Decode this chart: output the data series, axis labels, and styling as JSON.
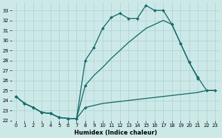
{
  "xlabel": "Humidex (Indice chaleur)",
  "xlim": [
    -0.5,
    23.5
  ],
  "ylim": [
    22,
    33.8
  ],
  "yticks": [
    22,
    23,
    24,
    25,
    26,
    27,
    28,
    29,
    30,
    31,
    32,
    33
  ],
  "xticks": [
    0,
    1,
    2,
    3,
    4,
    5,
    6,
    7,
    8,
    9,
    10,
    11,
    12,
    13,
    14,
    15,
    16,
    17,
    18,
    19,
    20,
    21,
    22,
    23
  ],
  "bg_color": "#cce9e8",
  "grid_color": "#aad0ce",
  "line_color": "#1a6b6b",
  "line_width": 1.0,
  "marker_size": 2.5,
  "line1_x": [
    0,
    1,
    2,
    3,
    4,
    5,
    6,
    7,
    8,
    9,
    10,
    11,
    12,
    13,
    14,
    15,
    16,
    17,
    18,
    19,
    20,
    21,
    22,
    23
  ],
  "line1_y": [
    24.4,
    23.7,
    23.3,
    22.8,
    22.7,
    22.3,
    22.2,
    22.2,
    23.3,
    23.5,
    23.7,
    23.8,
    23.9,
    24.0,
    24.1,
    24.2,
    24.3,
    24.4,
    24.5,
    24.6,
    24.7,
    24.8,
    25.0,
    25.0
  ],
  "line1_markers_x": [
    0,
    1,
    2,
    3,
    4,
    5,
    6,
    7,
    8
  ],
  "line1_markers_y": [
    24.4,
    23.7,
    23.3,
    22.8,
    22.7,
    22.3,
    22.2,
    22.2,
    23.3
  ],
  "line2_x": [
    0,
    1,
    2,
    3,
    4,
    5,
    6,
    7,
    8,
    9,
    10,
    11,
    12,
    13,
    14,
    15,
    16,
    17,
    18,
    19,
    20,
    21,
    22,
    23
  ],
  "line2_y": [
    24.4,
    23.7,
    23.3,
    22.8,
    22.7,
    22.3,
    22.2,
    22.2,
    25.5,
    26.5,
    27.3,
    28.2,
    29.0,
    29.8,
    30.5,
    31.2,
    31.6,
    32.0,
    31.6,
    29.7,
    27.8,
    26.3,
    25.0,
    25.0
  ],
  "line2_markers_x": [
    0,
    1,
    2,
    3,
    4,
    5,
    6,
    7,
    8,
    18,
    19,
    20,
    21,
    22,
    23
  ],
  "line2_markers_y": [
    24.4,
    23.7,
    23.3,
    22.8,
    22.7,
    22.3,
    22.2,
    22.2,
    25.5,
    31.6,
    29.7,
    27.8,
    26.3,
    25.0,
    25.0
  ],
  "line3_x": [
    0,
    1,
    2,
    3,
    4,
    5,
    6,
    7,
    8,
    9,
    10,
    11,
    12,
    13,
    14,
    15,
    16,
    17,
    18,
    19,
    20,
    21
  ],
  "line3_y": [
    24.4,
    23.7,
    23.3,
    22.8,
    22.7,
    22.3,
    22.2,
    22.2,
    28.0,
    29.3,
    31.2,
    32.3,
    32.7,
    32.2,
    32.2,
    33.5,
    33.0,
    33.0,
    31.6,
    29.7,
    27.8,
    26.2
  ],
  "line3_markers_x": [
    0,
    1,
    2,
    3,
    4,
    5,
    6,
    7,
    8,
    9,
    10,
    11,
    12,
    13,
    14,
    15,
    16,
    17,
    18,
    19,
    20,
    21
  ],
  "line3_markers_y": [
    24.4,
    23.7,
    23.3,
    22.8,
    22.7,
    22.3,
    22.2,
    22.2,
    28.0,
    29.3,
    31.2,
    32.3,
    32.7,
    32.2,
    32.2,
    33.5,
    33.0,
    33.0,
    31.6,
    29.7,
    27.8,
    26.2
  ]
}
